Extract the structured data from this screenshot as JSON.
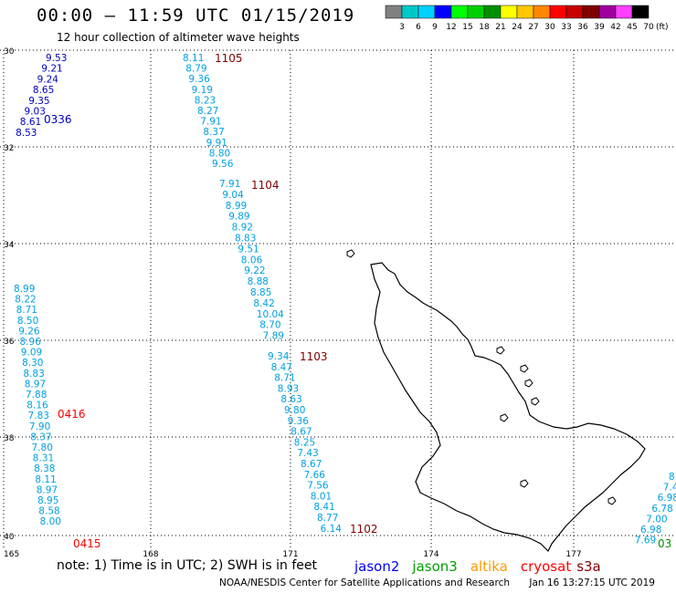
{
  "header": {
    "title": "00:00 – 11:59 UTC 01/15/2019",
    "subtitle": "12 hour collection of altimeter wave heights"
  },
  "scale": {
    "labels": [
      "3",
      "6",
      "9",
      "12",
      "15",
      "18",
      "21",
      "24",
      "27",
      "30",
      "33",
      "36",
      "39",
      "42",
      "45",
      "70"
    ],
    "unit": "(ft)",
    "colors": [
      "#808080",
      "#00c8c8",
      "#00d0ff",
      "#0000ff",
      "#00ff00",
      "#00d000",
      "#009000",
      "#ffff00",
      "#ffc800",
      "#ff8800",
      "#ff0000",
      "#c80000",
      "#800000",
      "#a000a0",
      "#ff40ff",
      "#000000"
    ]
  },
  "axes": {
    "lat_labels": [
      "30",
      "32",
      "34",
      "36",
      "38",
      "40"
    ],
    "lon_labels": [
      "165",
      "168",
      "171",
      "174",
      "177"
    ]
  },
  "tracks": [
    {
      "id": "jason2-a",
      "color": "#0000c0",
      "values": [
        "9.53",
        "9.21",
        "9.24",
        "8.65",
        "9.35",
        "9.03",
        "8.61",
        "8.53"
      ],
      "pass": "0336",
      "pass_color": "#0000c0"
    },
    {
      "id": "cryosat-b",
      "color": "#00a0e0",
      "values": [
        "8.11",
        "8.79",
        "9.36",
        "9.19",
        "8.23",
        "8.27",
        "7.91",
        "8.37",
        "9.91",
        "8.80",
        "9.56"
      ],
      "pass": "1105",
      "pass_color": "#800000"
    },
    {
      "id": "cryosat-c",
      "color": "#00a0e0",
      "values": [
        "7.91",
        "9.04",
        "8.99",
        "9.89",
        "8.92",
        "8.83",
        "9.51",
        "8.06",
        "9.22",
        "8.88",
        "8.85",
        "8.42",
        "10.04",
        "8.70",
        "7.89"
      ],
      "pass": "1104",
      "pass_color": "#800000"
    },
    {
      "id": "cryosat-d",
      "color": "#00a0e0",
      "values": [
        "9.34",
        "8.47",
        "8.71",
        "8.93",
        "8.63",
        "9.80",
        "9.36",
        "8.67",
        "8.25",
        "7.43",
        "8.67",
        "7.66",
        "7.56",
        "8.01",
        "8.41",
        "8.77",
        "6.14"
      ],
      "pass1": "1103",
      "pass2": "1102",
      "pass_color": "#800000"
    },
    {
      "id": "left-e",
      "color": "#00a0e0",
      "values": [
        "8.99",
        "8.22",
        "8.71",
        "8.50",
        "9.26",
        "8.96",
        "9.09",
        "8.30",
        "8.83",
        "8.97",
        "7.88",
        "8.16",
        "7.83",
        "7.90",
        "8.37",
        "7.80",
        "8.31",
        "8.38",
        "8.11",
        "8.97",
        "8.95",
        "8.58",
        "8.00"
      ],
      "pass1": "0416",
      "pass2": "0415",
      "pass_color": "#ff0000"
    },
    {
      "id": "right-f",
      "color": "#00a0e0",
      "values": [
        "8",
        "7.4",
        "6.98",
        "6.78",
        "7.00",
        "6.98",
        "7.69"
      ],
      "pass": "03",
      "pass_color": "#009000"
    }
  ],
  "note": {
    "text": "note:  1) Time is in UTC;  2) SWH is in feet",
    "legend": [
      {
        "name": "jason2",
        "color": "#0000ff"
      },
      {
        "name": "jason3",
        "color": "#00a000"
      },
      {
        "name": "altika",
        "color": "#ff9900"
      },
      {
        "name": "cryosat",
        "color": "#ff0000"
      },
      {
        "name": "s3a",
        "color": "#800000"
      }
    ]
  },
  "footer": {
    "credit": "NOAA/NESDIS Center for Satellite Applications and Research",
    "timestamp": "Jan 16 13:27:15 UTC 2019"
  }
}
